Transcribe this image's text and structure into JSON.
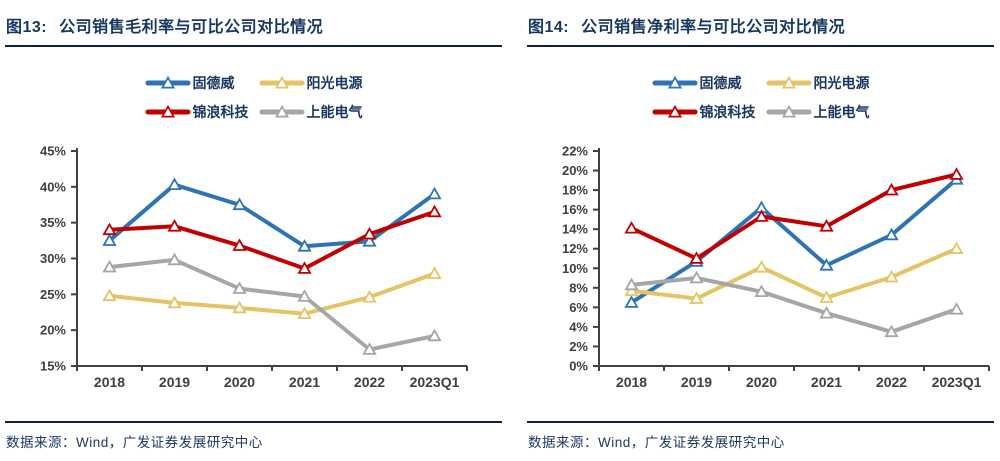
{
  "panels": [
    {
      "title_prefix": "图13:",
      "title": "公司销售毛利率与可比公司对比情况",
      "source": "数据来源：Wind，广发证券发展研究中心"
    },
    {
      "title_prefix": "图14:",
      "title": "公司销售净利率与可比公司对比情况",
      "source": "数据来源：Wind，广发证券发展研究中心"
    }
  ],
  "colors": {
    "goodwe_blue": "#2e74b5",
    "sungrow_yellow": "#e4c464",
    "ginlong_red": "#c00000",
    "sineng_gray": "#a6a6a6",
    "title_navy": "#17375e",
    "axis_gray": "#404040",
    "rule_dark": "#10203f"
  },
  "chart_data": [
    {
      "type": "line",
      "title": "公司销售毛利率与可比公司对比情况",
      "categories": [
        "2018",
        "2019",
        "2020",
        "2021",
        "2022",
        "2023Q1"
      ],
      "series": [
        {
          "name": "固德威",
          "color": "#2e74b5",
          "values": [
            32.5,
            40.3,
            37.5,
            31.7,
            32.4,
            39.0
          ]
        },
        {
          "name": "阳光电源",
          "color": "#e4c464",
          "values": [
            24.8,
            23.8,
            23.1,
            22.3,
            24.6,
            27.9
          ]
        },
        {
          "name": "锦浪科技",
          "color": "#c00000",
          "values": [
            34.0,
            34.5,
            31.8,
            28.6,
            33.4,
            36.5
          ]
        },
        {
          "name": "上能电气",
          "color": "#a6a6a6",
          "values": [
            28.8,
            29.8,
            25.8,
            24.7,
            17.3,
            19.2
          ]
        }
      ],
      "xlabel": "",
      "ylabel": "",
      "ylim": [
        15,
        45
      ],
      "ytick_step": 5,
      "ytick_suffix": "%",
      "grid": false,
      "legend_position": "top"
    },
    {
      "type": "line",
      "title": "公司销售净利率与可比公司对比情况",
      "categories": [
        "2018",
        "2019",
        "2020",
        "2021",
        "2022",
        "2023Q1"
      ],
      "series": [
        {
          "name": "固德威",
          "color": "#2e74b5",
          "values": [
            6.5,
            10.7,
            16.2,
            10.3,
            13.4,
            19.1
          ]
        },
        {
          "name": "阳光电源",
          "color": "#e4c464",
          "values": [
            7.7,
            6.9,
            10.1,
            7.0,
            9.1,
            12.0
          ]
        },
        {
          "name": "锦浪科技",
          "color": "#c00000",
          "values": [
            14.1,
            11.0,
            15.3,
            14.3,
            18.0,
            19.6
          ]
        },
        {
          "name": "上能电气",
          "color": "#a6a6a6",
          "values": [
            8.3,
            9.0,
            7.6,
            5.4,
            3.5,
            5.8
          ]
        }
      ],
      "xlabel": "",
      "ylabel": "",
      "ylim": [
        0,
        22
      ],
      "ytick_step": 2,
      "ytick_suffix": "%",
      "grid": false,
      "legend_position": "top"
    }
  ]
}
